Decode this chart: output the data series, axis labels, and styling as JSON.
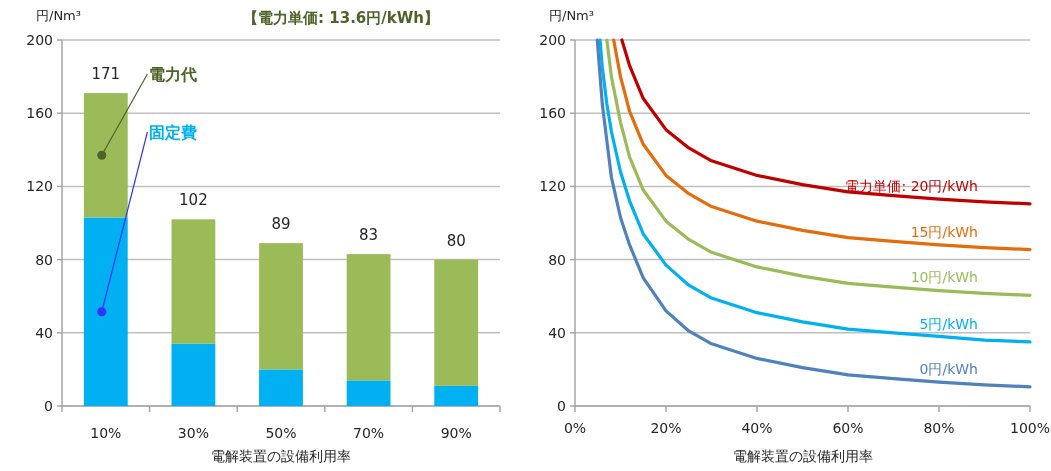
{
  "chart_data": [
    {
      "type": "bar",
      "stacked": true,
      "title": "【電力単価: 13.6円/kWh】",
      "ylabel": "円/Nm³",
      "xlabel": "電解装置の設備利用率",
      "categories": [
        "10%",
        "30%",
        "50%",
        "70%",
        "90%"
      ],
      "series": [
        {
          "name": "固定費",
          "color": "#00b0f0",
          "values": [
            103,
            34,
            20,
            14,
            11
          ]
        },
        {
          "name": "電力代",
          "color": "#9bbb59",
          "values": [
            68,
            68,
            69,
            69,
            69
          ]
        }
      ],
      "totals": [
        "171",
        "102",
        "89",
        "83",
        "80"
      ],
      "ylim": [
        0,
        200
      ],
      "yticks": [
        0,
        40,
        80,
        120,
        160,
        200
      ],
      "grid": "y"
    },
    {
      "type": "line",
      "ylabel": "円/Nm³",
      "xlabel": "電解装置の設備利用率",
      "xlim": [
        0,
        100
      ],
      "xticks": [
        {
          "value": 0,
          "label": "0%"
        },
        {
          "value": 20,
          "label": "20%"
        },
        {
          "value": 40,
          "label": "40%"
        },
        {
          "value": 60,
          "label": "60%"
        },
        {
          "value": 80,
          "label": "80%"
        },
        {
          "value": 100,
          "label": "100%"
        }
      ],
      "ylim": [
        0,
        200
      ],
      "yticks": [
        0,
        40,
        80,
        120,
        160,
        200
      ],
      "grid": "y",
      "series": [
        {
          "name": "電力単価: 20円/kWh",
          "color": "#c00000",
          "x": [
            10.3,
            12,
            15,
            20,
            25,
            30,
            40,
            50,
            60,
            70,
            80,
            90,
            100
          ],
          "values": [
            200,
            186,
            168,
            151,
            141,
            134,
            126,
            121,
            117,
            115,
            113,
            111.5,
            110.5
          ]
        },
        {
          "name": "15円/kWh",
          "color": "#e46c0a",
          "x": [
            8.5,
            10,
            12,
            15,
            20,
            25,
            30,
            40,
            50,
            60,
            70,
            80,
            90,
            100
          ],
          "values": [
            200,
            180,
            161,
            143,
            126,
            116,
            109,
            101,
            96,
            92,
            90,
            88,
            86.5,
            85.5
          ]
        },
        {
          "name": "10円/kWh",
          "color": "#9bbb59",
          "x": [
            7,
            8,
            10,
            12,
            15,
            20,
            25,
            30,
            40,
            50,
            60,
            70,
            80,
            90,
            100
          ],
          "values": [
            200,
            180,
            155,
            136,
            118,
            101,
            91,
            84,
            76,
            71,
            67,
            65,
            63,
            61.5,
            60.5
          ]
        },
        {
          "name": "5円/kWh",
          "color": "#00b0f0",
          "x": [
            5.5,
            6,
            7,
            8,
            10,
            12,
            15,
            20,
            25,
            30,
            40,
            50,
            60,
            70,
            80,
            90,
            100
          ],
          "values": [
            200,
            185,
            165,
            150,
            128,
            112,
            94,
            77,
            66,
            59,
            51,
            46,
            42,
            40,
            38,
            36,
            35
          ]
        },
        {
          "name": "0円/kWh",
          "color": "#4f81bd",
          "x": [
            4.9,
            6,
            7,
            8,
            10,
            12,
            15,
            20,
            25,
            30,
            40,
            50,
            60,
            70,
            80,
            90,
            100
          ],
          "values": [
            200,
            165,
            145,
            125,
            103,
            88,
            70,
            52,
            41,
            34,
            26,
            21,
            17,
            15,
            13,
            11.5,
            10.5
          ]
        }
      ]
    }
  ]
}
